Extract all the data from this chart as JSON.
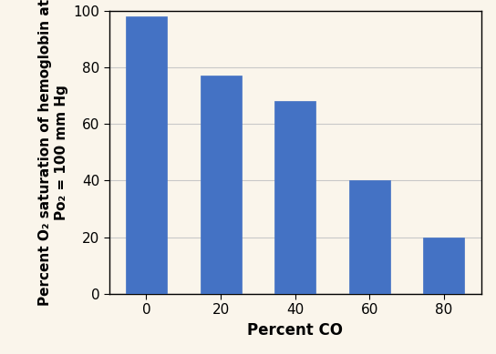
{
  "categories": [
    "0",
    "20",
    "40",
    "60",
    "80"
  ],
  "values": [
    98,
    77,
    68,
    40,
    20
  ],
  "bar_color": "#4472C4",
  "xlabel": "Percent CO",
  "ylabel_line1": "Percent O₂ saturation of hemoglobin at",
  "ylabel_line2": "Po₂ = 100 mm Hg",
  "ylim": [
    0,
    100
  ],
  "yticks": [
    0,
    20,
    40,
    60,
    80,
    100
  ],
  "background_color": "#FAF5EB",
  "bar_width": 0.55,
  "xlabel_fontsize": 12,
  "ylabel_fontsize": 11,
  "tick_fontsize": 11,
  "grid_color": "#C8C8C8"
}
